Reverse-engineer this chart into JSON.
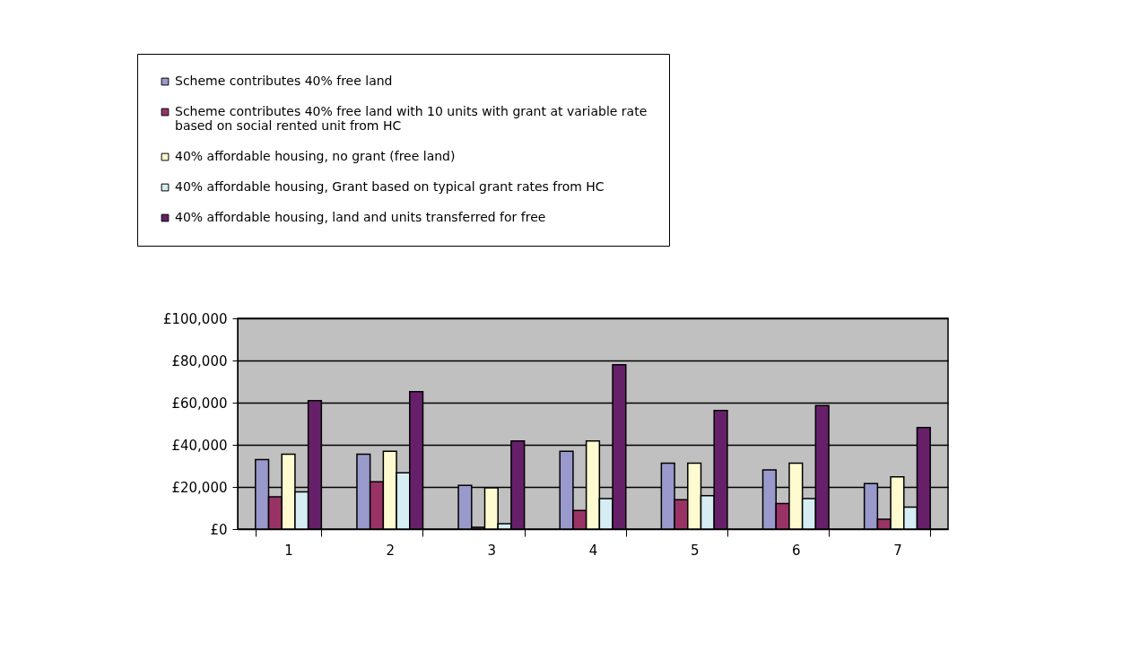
{
  "chart_data": {
    "type": "bar",
    "categories": [
      "1",
      "2",
      "3",
      "4",
      "5",
      "6",
      "7"
    ],
    "series": [
      {
        "name": "Scheme contributes 40% free land",
        "color": "#9999cc",
        "values": [
          33000,
          35500,
          20700,
          36900,
          31300,
          28100,
          21600
        ]
      },
      {
        "name": "Scheme contributes 40% free land with 10 units with grant at variable rate\nbased on social rented unit from HC",
        "color": "#993366",
        "values": [
          15300,
          22400,
          900,
          8800,
          13900,
          12100,
          4700
        ]
      },
      {
        "name": "40% affordable housing, no grant (free land)",
        "color": "#fffbd0",
        "values": [
          35500,
          36900,
          19600,
          41800,
          31300,
          31300,
          24800
        ]
      },
      {
        "name": "40% affordable housing, Grant based on typical grant rates from HC",
        "color": "#d5edf3",
        "values": [
          17700,
          26700,
          2600,
          14500,
          15900,
          14500,
          10400
        ]
      },
      {
        "name": "40% affordable housing, land and units transferred for free",
        "color": "#66206a",
        "values": [
          61000,
          65200,
          41800,
          78000,
          56300,
          58600,
          48200
        ]
      }
    ],
    "ylim": [
      0,
      100000
    ],
    "yticks": [
      {
        "value": 0,
        "label": "£0"
      },
      {
        "value": 20000,
        "label": "£20,000"
      },
      {
        "value": 40000,
        "label": "£40,000"
      },
      {
        "value": 60000,
        "label": "£60,000"
      },
      {
        "value": 80000,
        "label": "£80,000"
      },
      {
        "value": 100000,
        "label": "£100,000"
      }
    ],
    "grid": "y",
    "legend": "top"
  }
}
